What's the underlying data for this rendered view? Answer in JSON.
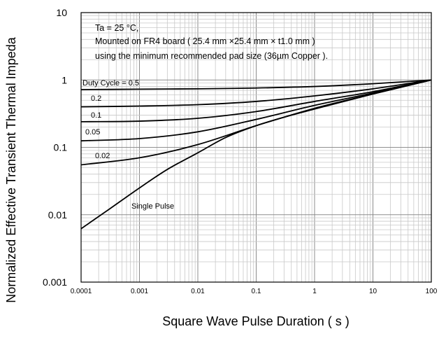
{
  "chart_data": {
    "type": "line",
    "title": "",
    "xlabel": "Square Wave Pulse Duration ( s )",
    "ylabel": "Normalized Effective Transient Thermal Impeda",
    "x_scale": "log",
    "y_scale": "log",
    "xlim": [
      0.0001,
      100
    ],
    "ylim": [
      0.001,
      10
    ],
    "grid": true,
    "x_ticks": [
      {
        "value": 0.0001,
        "label": "0.0001"
      },
      {
        "value": 0.001,
        "label": "0.001"
      },
      {
        "value": 0.01,
        "label": "0.01"
      },
      {
        "value": 0.1,
        "label": "0.1"
      },
      {
        "value": 1,
        "label": "1"
      },
      {
        "value": 10,
        "label": "10"
      },
      {
        "value": 100,
        "label": "100"
      }
    ],
    "y_ticks": [
      {
        "value": 10,
        "label": "10"
      },
      {
        "value": 1,
        "label": "1"
      },
      {
        "value": 0.1,
        "label": "0.1"
      },
      {
        "value": 0.01,
        "label": "0.01"
      },
      {
        "value": 0.001,
        "label": "0.001"
      }
    ],
    "annotations": [
      "Ta = 25 °C,",
      "Mounted on FR4 board  ( 25.4 mm  ×25.4 mm  × t1.0 mm )",
      "using the minimum recommended pad size (36µm Copper )."
    ],
    "series": [
      {
        "name": "Duty Cycle = 0.5",
        "x": [
          0.0001,
          0.001,
          0.01,
          0.1,
          1,
          10,
          100
        ],
        "y": [
          0.72,
          0.73,
          0.74,
          0.76,
          0.8,
          0.88,
          1.0
        ]
      },
      {
        "name": "0.2",
        "x": [
          0.0001,
          0.001,
          0.01,
          0.1,
          1,
          10,
          100
        ],
        "y": [
          0.4,
          0.41,
          0.43,
          0.48,
          0.58,
          0.74,
          1.0
        ]
      },
      {
        "name": "0.1",
        "x": [
          0.0001,
          0.001,
          0.01,
          0.1,
          1,
          10,
          100
        ],
        "y": [
          0.24,
          0.245,
          0.27,
          0.34,
          0.48,
          0.67,
          1.0
        ]
      },
      {
        "name": "0.05",
        "x": [
          0.0001,
          0.001,
          0.01,
          0.1,
          1,
          10,
          100
        ],
        "y": [
          0.125,
          0.135,
          0.17,
          0.26,
          0.42,
          0.64,
          1.0
        ]
      },
      {
        "name": "0.02",
        "x": [
          0.0001,
          0.001,
          0.01,
          0.1,
          1,
          10,
          100
        ],
        "y": [
          0.055,
          0.07,
          0.11,
          0.21,
          0.38,
          0.62,
          1.0
        ]
      },
      {
        "name": "Single Pulse",
        "x": [
          0.0001,
          0.0003,
          0.001,
          0.003,
          0.01,
          0.03,
          0.1,
          0.3,
          1,
          10,
          100
        ],
        "y": [
          0.0062,
          0.012,
          0.025,
          0.047,
          0.083,
          0.14,
          0.21,
          0.28,
          0.37,
          0.62,
          1.0
        ]
      }
    ]
  }
}
